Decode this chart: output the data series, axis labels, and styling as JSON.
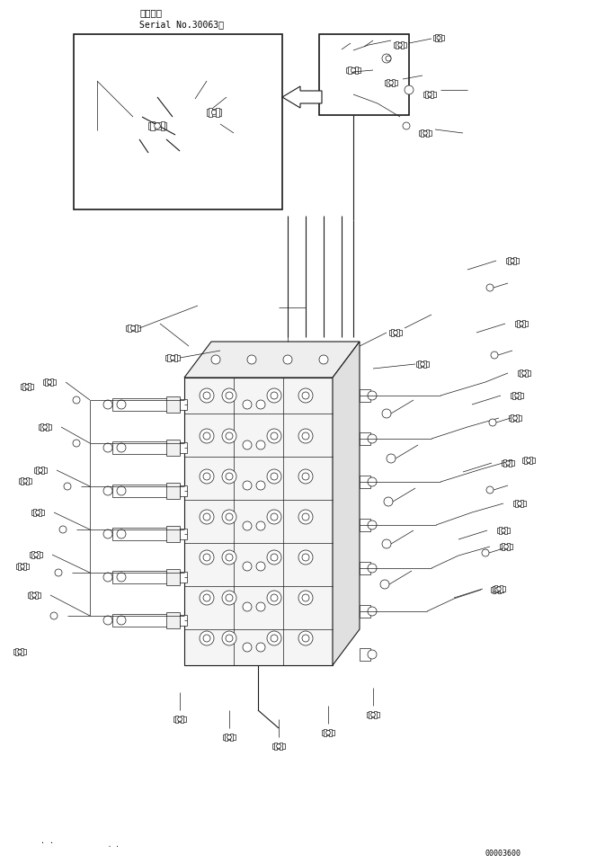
{
  "title_line1": "適用号機",
  "title_line2": "Serial No.30063～",
  "part_number": "00003600",
  "bg_color": "#ffffff",
  "line_color": "#1a1a1a",
  "figsize": [
    6.73,
    9.6
  ],
  "dpi": 100,
  "lw_main": 0.8,
  "lw_thin": 0.5
}
